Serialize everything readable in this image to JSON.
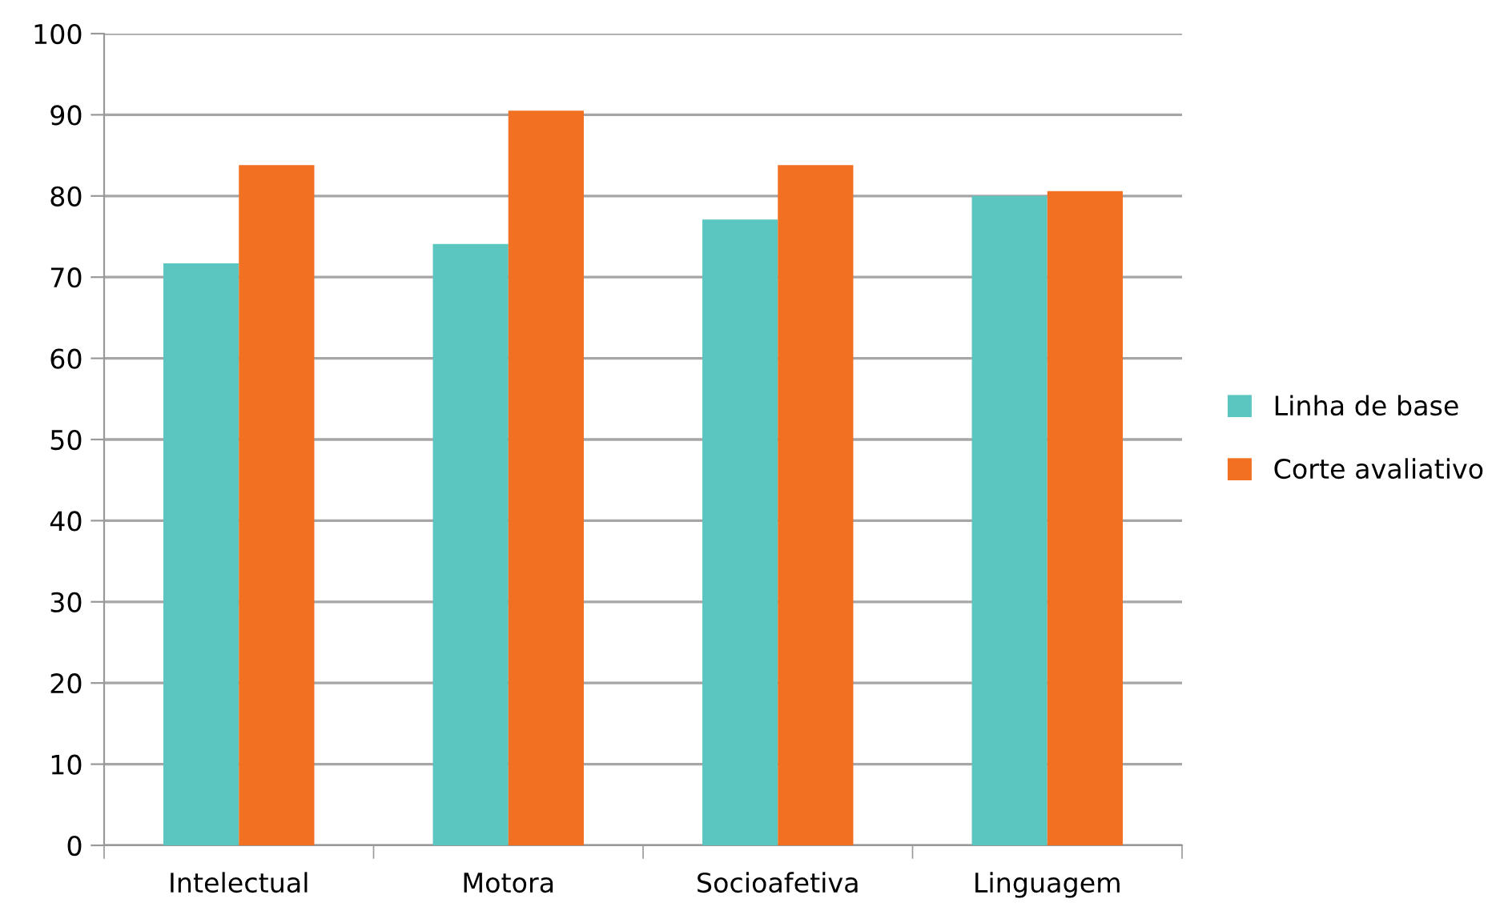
{
  "chart_data": {
    "type": "bar",
    "categories": [
      "Intelectual",
      "Motora",
      "Socioafetiva",
      "Linguagem"
    ],
    "series": [
      {
        "name": "Linha de base",
        "color": "#5bc5bf",
        "values": [
          71.7,
          74.1,
          77.1,
          80.0
        ]
      },
      {
        "name": "Corte avaliativo",
        "color": "#f27021",
        "values": [
          83.8,
          90.5,
          83.8,
          80.6
        ]
      }
    ],
    "ylim": [
      0,
      100
    ],
    "yticks": [
      0,
      10,
      20,
      30,
      40,
      50,
      60,
      70,
      80,
      90,
      100
    ],
    "grid": "y",
    "legend": "right"
  }
}
